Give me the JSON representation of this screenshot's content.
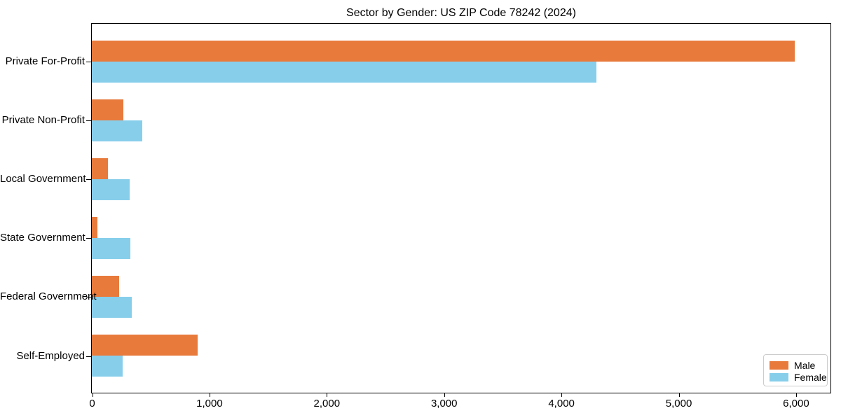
{
  "title": "Sector by Gender: US ZIP Code 78242 (2024)",
  "chart_data": {
    "type": "bar",
    "orientation": "horizontal",
    "title": "Sector by Gender: US ZIP Code 78242 (2024)",
    "xlabel": "",
    "ylabel": "",
    "categories": [
      "Private For-Profit",
      "Private Non-Profit",
      "Local Government",
      "State Government",
      "Federal Government",
      "Self-Employed"
    ],
    "series": [
      {
        "name": "Male",
        "color": "#E87A3C",
        "values": [
          5990,
          270,
          140,
          50,
          230,
          900
        ]
      },
      {
        "name": "Female",
        "color": "#87CEEB",
        "values": [
          4300,
          430,
          320,
          330,
          340,
          260
        ]
      }
    ],
    "xlim": [
      0,
      6290
    ],
    "xticks": [
      0,
      1000,
      2000,
      3000,
      4000,
      5000,
      6000
    ],
    "xtick_labels": [
      "0",
      "1,000",
      "2,000",
      "3,000",
      "4,000",
      "5,000",
      "6,000"
    ],
    "grid": false,
    "legend_position": "lower right",
    "frame": "full-box"
  }
}
